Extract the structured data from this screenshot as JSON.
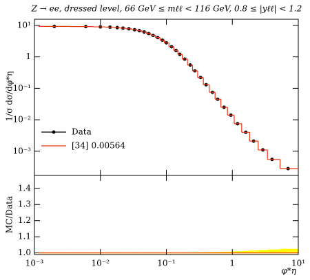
{
  "chart_data": [
    {
      "type": "line",
      "title": "Z → ee, dressed level, 66 GeV ≤ mℓℓ < 116 GeV, 0.8 ≤ |yℓℓ| < 1.2",
      "y_label": "1/σ dσ/dφ*η",
      "log_x": true,
      "log_y": true,
      "legend": "lower-left",
      "x": [
        0.002,
        0.006,
        0.01,
        0.014,
        0.018,
        0.022,
        0.027,
        0.033,
        0.039,
        0.046,
        0.054,
        0.063,
        0.074,
        0.087,
        0.1,
        0.12,
        0.14,
        0.16,
        0.19,
        0.23,
        0.27,
        0.33,
        0.4,
        0.5,
        0.6,
        0.75,
        0.95,
        1.2,
        1.6,
        2.1,
        2.9,
        4,
        7
      ],
      "series": [
        {
          "name": "Data",
          "color": "#000000",
          "style": "markers",
          "values": [
            9.3,
            9.2,
            9.0,
            8.8,
            8.5,
            8.2,
            7.8,
            7.3,
            6.8,
            6.2,
            5.5,
            4.8,
            4.1,
            3.4,
            2.8,
            2.1,
            1.6,
            1.2,
            0.85,
            0.55,
            0.36,
            0.22,
            0.13,
            0.075,
            0.045,
            0.025,
            0.014,
            0.0075,
            0.004,
            0.0021,
            0.0011,
            0.00055,
            0.00028
          ]
        },
        {
          "name": "[34] 0.00564",
          "color": "#ee3311",
          "style": "steps",
          "values": [
            9.3,
            9.2,
            9.0,
            8.8,
            8.5,
            8.2,
            7.8,
            7.3,
            6.8,
            6.2,
            5.5,
            4.8,
            4.1,
            3.4,
            2.8,
            2.1,
            1.6,
            1.2,
            0.85,
            0.55,
            0.36,
            0.22,
            0.13,
            0.075,
            0.045,
            0.025,
            0.014,
            0.0075,
            0.004,
            0.0021,
            0.0011,
            0.00055,
            0.00028
          ]
        }
      ],
      "xlim": [
        0.001,
        10
      ],
      "ylim": [
        0.00017,
        15.7
      ],
      "yticks": [
        {
          "value": 10,
          "label": "10¹"
        },
        1,
        {
          "value": 0.1,
          "label": "10⁻¹"
        },
        {
          "value": 0.01,
          "label": "10⁻²"
        },
        {
          "value": 0.001,
          "label": "10⁻³"
        }
      ]
    },
    {
      "type": "line",
      "y_label": "MC/Data",
      "x_label": "φ*η",
      "log_x": true,
      "band_color": "#ffff00",
      "x": [
        0.002,
        0.006,
        0.01,
        0.014,
        0.018,
        0.022,
        0.027,
        0.033,
        0.039,
        0.046,
        0.054,
        0.063,
        0.074,
        0.087,
        0.1,
        0.12,
        0.14,
        0.16,
        0.19,
        0.23,
        0.27,
        0.33,
        0.4,
        0.5,
        0.6,
        0.75,
        0.95,
        1.2,
        1.6,
        2.1,
        2.9,
        4,
        7
      ],
      "band_upper": [
        1.0,
        1.0,
        1.0,
        1.0,
        1.0,
        1.0,
        1.0,
        1.0,
        1.0,
        1.0,
        1.0,
        1.0,
        1.0,
        1.0,
        1.0,
        1.0,
        1.0,
        1.0,
        1.0,
        1.0,
        1.001,
        1.001,
        1.002,
        1.002,
        1.003,
        1.004,
        1.005,
        1.007,
        1.009,
        1.012,
        1.015,
        1.018,
        1.022
      ],
      "series": [
        {
          "name": "[34] 0.00564",
          "color": "#ee3311",
          "values": [
            1.0,
            1.0,
            1.0,
            1.0,
            1.0,
            1.0,
            1.0,
            1.0,
            1.0,
            1.0,
            1.0,
            1.0,
            1.0,
            1.0,
            1.0,
            1.0,
            1.0,
            1.0,
            1.0,
            1.0,
            1.0,
            1.0,
            1.0,
            1.0,
            1.0,
            1.0,
            1.0,
            1.0,
            1.0,
            1.0,
            1.0,
            1.0,
            1.0
          ]
        }
      ],
      "xlim": [
        0.001,
        10
      ],
      "ylim": [
        0.99,
        1.48
      ],
      "xticks": [
        {
          "value": 0.001,
          "label": "10⁻³"
        },
        {
          "value": 0.01,
          "label": "10⁻²"
        },
        {
          "value": 0.1,
          "label": "10⁻¹"
        },
        1,
        {
          "value": 10,
          "label": "10¹"
        }
      ],
      "yticks": [
        {
          "value": 1.0,
          "label": "1.0"
        },
        {
          "value": 1.1,
          "label": "1.1"
        },
        {
          "value": 1.2,
          "label": "1.2"
        },
        {
          "value": 1.3,
          "label": "1.3"
        },
        {
          "value": 1.4,
          "label": "1.4"
        }
      ]
    }
  ]
}
